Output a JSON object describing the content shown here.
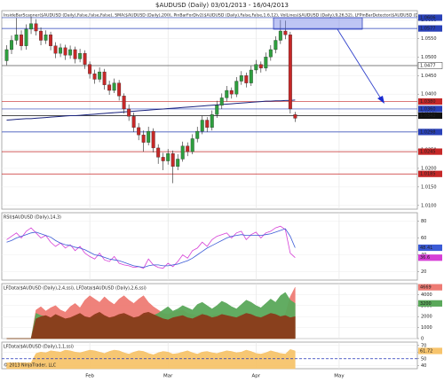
{
  "chart_data": [
    {
      "type": "candlestick",
      "title": "$AUDUSD (Daily)  03/01/2013 - 16/04/2013",
      "subtitle": "InsideBarScanner($AUDUSD (Daily),False,False,False), SMA($AUDUSD (Daily),200), PinBarForDiv2($AUDUSD (Daily),False,False,1.6,12), VolLines($AUDUSD (Daily),9,26,52), LFPinBarDetector($AUDUSD (Daily),",
      "up_color": "#2e9e3e",
      "down_color": "#c62828",
      "open": [
        1.049,
        1.052,
        1.0545,
        1.056,
        1.053,
        1.0575,
        1.059,
        1.057,
        1.0545,
        1.056,
        1.053,
        1.051,
        1.0525,
        1.0505,
        1.052,
        1.0495,
        1.051,
        1.048,
        1.0455,
        1.044,
        1.046,
        1.0425,
        1.041,
        1.043,
        1.0395,
        1.036,
        1.034,
        1.031,
        1.029,
        1.027,
        1.03,
        1.0255,
        1.023,
        1.022,
        1.024,
        1.0205,
        1.0225,
        1.026,
        1.0245,
        1.028,
        1.03,
        1.033,
        1.031,
        1.0345,
        1.037,
        1.039,
        1.041,
        1.04,
        1.0435,
        1.045,
        1.043,
        1.0465,
        1.048,
        1.047,
        1.05,
        1.052,
        1.0545,
        1.057,
        1.056,
        1.0345
      ],
      "high": [
        1.0532,
        1.0558,
        1.0605,
        1.0572,
        1.0588,
        1.061,
        1.0602,
        1.058,
        1.0572,
        1.0568,
        1.054,
        1.0536,
        1.0533,
        1.0531,
        1.0528,
        1.0522,
        1.0518,
        1.0488,
        1.0466,
        1.0472,
        1.0468,
        1.0436,
        1.0442,
        1.0438,
        1.0402,
        1.0372,
        1.035,
        1.0322,
        1.0302,
        1.0312,
        1.0308,
        1.0265,
        1.0242,
        1.0252,
        1.0248,
        1.0238,
        1.0272,
        1.027,
        1.0292,
        1.0312,
        1.0342,
        1.0338,
        1.0356,
        1.0382,
        1.0402,
        1.0422,
        1.0418,
        1.0446,
        1.0462,
        1.0458,
        1.0476,
        1.0492,
        1.0488,
        1.0512,
        1.0532,
        1.0556,
        1.06,
        1.0598,
        1.0568,
        1.0352
      ],
      "low": [
        1.0478,
        1.0508,
        1.0533,
        1.0518,
        1.052,
        1.0562,
        1.0558,
        1.0532,
        1.0535,
        1.0518,
        1.0497,
        1.05,
        1.0492,
        1.0495,
        1.0483,
        1.0486,
        1.0468,
        1.0442,
        1.0428,
        1.0432,
        1.0412,
        1.0398,
        1.0403,
        1.0383,
        1.0348,
        1.0328,
        1.0298,
        1.0276,
        1.0245,
        1.0262,
        1.0243,
        1.0212,
        1.0195,
        1.021,
        1.016,
        1.0195,
        1.0218,
        1.0233,
        1.0238,
        1.027,
        1.0292,
        1.0298,
        1.0302,
        1.0336,
        1.036,
        1.038,
        1.0388,
        1.0392,
        1.0425,
        1.0418,
        1.0422,
        1.0455,
        1.0458,
        1.0462,
        1.049,
        1.051,
        1.0535,
        1.0548,
        1.0348,
        1.0325
      ],
      "close": [
        1.052,
        1.0545,
        1.056,
        1.053,
        1.0575,
        1.059,
        1.057,
        1.0545,
        1.056,
        1.053,
        1.051,
        1.0525,
        1.0505,
        1.052,
        1.0495,
        1.051,
        1.048,
        1.0455,
        1.044,
        1.046,
        1.0425,
        1.041,
        1.043,
        1.0395,
        1.036,
        1.034,
        1.031,
        1.029,
        1.027,
        1.03,
        1.0255,
        1.023,
        1.022,
        1.024,
        1.0205,
        1.0225,
        1.026,
        1.0245,
        1.028,
        1.03,
        1.033,
        1.031,
        1.0345,
        1.037,
        1.039,
        1.041,
        1.04,
        1.0435,
        1.045,
        1.043,
        1.0465,
        1.048,
        1.047,
        1.05,
        1.052,
        1.0545,
        1.057,
        1.056,
        1.036,
        1.0335
      ],
      "overlays": [
        {
          "color": "#1a237e",
          "values": [
            1.033,
            1.0331,
            1.0332,
            1.0333,
            1.0334,
            1.0334,
            1.0335,
            1.0336,
            1.0337,
            1.0338,
            1.0339,
            1.034,
            1.0341,
            1.0342,
            1.0342,
            1.0343,
            1.0344,
            1.0345,
            1.0346,
            1.0347,
            1.0348,
            1.0349,
            1.035,
            1.0351,
            1.0352,
            1.0353,
            1.0354,
            1.0355,
            1.0356,
            1.0357,
            1.0358,
            1.0359,
            1.036,
            1.0361,
            1.0362,
            1.0363,
            1.0364,
            1.0365,
            1.0366,
            1.0367,
            1.0368,
            1.0369,
            1.037,
            1.0371,
            1.0372,
            1.0373,
            1.0374,
            1.0375,
            1.0376,
            1.0377,
            1.0378,
            1.0379,
            1.038,
            1.0381,
            1.0381,
            1.0382,
            1.0382,
            1.0383,
            1.0383,
            1.0384
          ]
        }
      ],
      "levels": [
        {
          "value": 1.0606,
          "label": "1.0606",
          "color": "#2941b8"
        },
        {
          "value": 1.0577,
          "label": "1.0577",
          "color": "#2941b8"
        },
        {
          "value": 1.0477,
          "label": "1.0477",
          "color": "#555555"
        },
        {
          "value": 1.038,
          "label": "1.0380",
          "color": "#c62828"
        },
        {
          "value": 1.036,
          "label": "1.0360",
          "color": "#2941b8"
        },
        {
          "value": 1.0342,
          "label": "1.0342",
          "color": "#111111"
        },
        {
          "value": 1.0298,
          "label": "1.0298",
          "color": "#2941b8"
        },
        {
          "value": 1.0245,
          "label": "1.0245",
          "color": "#c62828"
        },
        {
          "value": 1.0185,
          "label": "1.0185",
          "color": "#c62828"
        }
      ],
      "ylim": [
        1.009,
        1.0625
      ],
      "yticks": [
        {
          "value": 1.06,
          "label": "1.0600"
        },
        {
          "value": 1.055,
          "label": "1.0550"
        },
        {
          "value": 1.05,
          "label": "1.0500"
        },
        {
          "value": 1.045,
          "label": "1.0450"
        },
        {
          "value": 1.04,
          "label": "1.0400"
        },
        {
          "value": 1.035,
          "label": "1.0350"
        },
        {
          "value": 1.03,
          "label": "1.0300"
        },
        {
          "value": 1.025,
          "label": "1.0250"
        },
        {
          "value": 1.02,
          "label": "1.0200"
        },
        {
          "value": 1.015,
          "label": "1.0150"
        },
        {
          "value": 1.01,
          "label": "1.0100"
        }
      ]
    },
    {
      "type": "line",
      "title": "RSI($AUDUSD (Daily),14,3)",
      "series": [
        {
          "color": "#d63fd6",
          "last_value_box": true,
          "values": [
            58,
            62,
            66,
            60,
            68,
            72,
            66,
            60,
            63,
            55,
            50,
            54,
            48,
            52,
            45,
            50,
            42,
            38,
            35,
            42,
            34,
            32,
            38,
            30,
            28,
            27,
            25,
            26,
            24,
            35,
            28,
            25,
            24,
            30,
            26,
            32,
            40,
            36,
            45,
            48,
            55,
            50,
            58,
            62,
            64,
            66,
            60,
            66,
            68,
            58,
            64,
            67,
            60,
            66,
            68,
            72,
            74,
            70,
            42,
            36.6
          ]
        },
        {
          "color": "#3b5bd6",
          "last_value_box": true,
          "values": [
            55,
            57,
            60,
            62,
            64,
            66,
            67,
            65,
            63,
            61,
            57,
            54,
            52,
            51,
            49,
            48,
            46,
            43,
            40,
            39,
            37,
            35,
            34,
            33,
            31,
            29,
            27,
            26,
            25,
            27,
            28,
            28,
            27,
            27,
            28,
            29,
            31,
            33,
            36,
            40,
            44,
            48,
            51,
            54,
            57,
            60,
            62,
            63,
            64,
            63,
            63,
            63,
            63,
            64,
            65,
            67,
            69,
            71,
            62,
            48.41
          ]
        }
      ],
      "ylim": [
        10,
        90
      ],
      "yticks": [
        20,
        40,
        60,
        80
      ]
    },
    {
      "type": "area",
      "title": "LFData($AUDUSD (Daily),2,4,ssi), LFData($AUDUSD (Daily),2,6,ssi)",
      "series": [
        {
          "color": "#ee7b74",
          "last_value_box": true,
          "values": [
            0,
            0,
            0,
            0,
            0,
            0,
            2600,
            2900,
            2500,
            2800,
            3000,
            2600,
            2400,
            2900,
            3200,
            2800,
            3500,
            3900,
            3600,
            3300,
            3800,
            3400,
            3100,
            3600,
            3900,
            3500,
            3200,
            3600,
            3900,
            3300,
            2900,
            2600,
            2300,
            2200,
            2400,
            2500,
            2600,
            2300,
            2200,
            2100,
            2300,
            2000,
            2100,
            2200,
            2000,
            2100,
            1900,
            2000,
            2200,
            2100,
            2000,
            1900,
            2000,
            2100,
            2000,
            2100,
            2000,
            2200,
            3800,
            4669
          ]
        },
        {
          "color": "#5aa85a",
          "last_value_box": true,
          "values": [
            0,
            0,
            0,
            0,
            0,
            0,
            2300,
            2100,
            2000,
            1800,
            2100,
            1900,
            1700,
            1800,
            2000,
            2200,
            1900,
            1800,
            2000,
            2200,
            2000,
            1800,
            1900,
            2000,
            2100,
            2000,
            1800,
            1900,
            2100,
            2200,
            2100,
            2300,
            2600,
            2900,
            2500,
            2700,
            3000,
            2800,
            2600,
            3100,
            3300,
            3000,
            2700,
            3000,
            3400,
            3200,
            2900,
            2700,
            3100,
            3500,
            3300,
            3000,
            2800,
            3200,
            3600,
            3300,
            3900,
            4200,
            3500,
            3200
          ]
        },
        {
          "color": "#8b3a1a",
          "values": [
            0,
            0,
            0,
            0,
            0,
            0,
            1800,
            2000,
            2100,
            1900,
            2200,
            2000,
            1800,
            1900,
            2100,
            2300,
            2000,
            1900,
            2200,
            2400,
            2100,
            1900,
            2000,
            2200,
            2300,
            2100,
            1900,
            2000,
            2300,
            2400,
            2200,
            2000,
            1800,
            1700,
            1900,
            2000,
            2100,
            1900,
            1800,
            2000,
            2200,
            2100,
            1900,
            2000,
            2200,
            2100,
            2000,
            1900,
            2100,
            2300,
            2200,
            2000,
            1900,
            2100,
            2300,
            2200,
            2000,
            2100,
            1900,
            2000
          ]
        }
      ],
      "ylim": [
        0,
        5000
      ],
      "yticks": [
        0,
        1000,
        2000,
        3000,
        4000
      ]
    },
    {
      "type": "area",
      "title": "LFData($AUDUSD (Daily),1,1,ssi)",
      "annotation": "© 2013 NinjaTrader, LLC",
      "series": [
        {
          "color": "#f7c46c",
          "last_value_box": true,
          "values": [
            44,
            44,
            44,
            44,
            44,
            44,
            58,
            60,
            59,
            62,
            61,
            60,
            63,
            62,
            60,
            59,
            61,
            63,
            62,
            60,
            58,
            61,
            63,
            62,
            59,
            57,
            60,
            62,
            61,
            58,
            56,
            59,
            61,
            60,
            57,
            58,
            60,
            62,
            59,
            57,
            60,
            61,
            59,
            58,
            60,
            62,
            61,
            59,
            60,
            63,
            61,
            58,
            57,
            59,
            62,
            60,
            58,
            57,
            64,
            61.72
          ]
        }
      ],
      "reference_line": 50,
      "ylim": [
        35,
        75
      ],
      "yticks": [
        40,
        50,
        60,
        70
      ],
      "xlim": [
        -1,
        84
      ],
      "xticks": [
        {
          "value": 17,
          "label": "Feb"
        },
        {
          "value": 33,
          "label": "Mar"
        },
        {
          "value": 51,
          "label": "Apr"
        },
        {
          "value": 68,
          "label": "May"
        }
      ]
    }
  ]
}
